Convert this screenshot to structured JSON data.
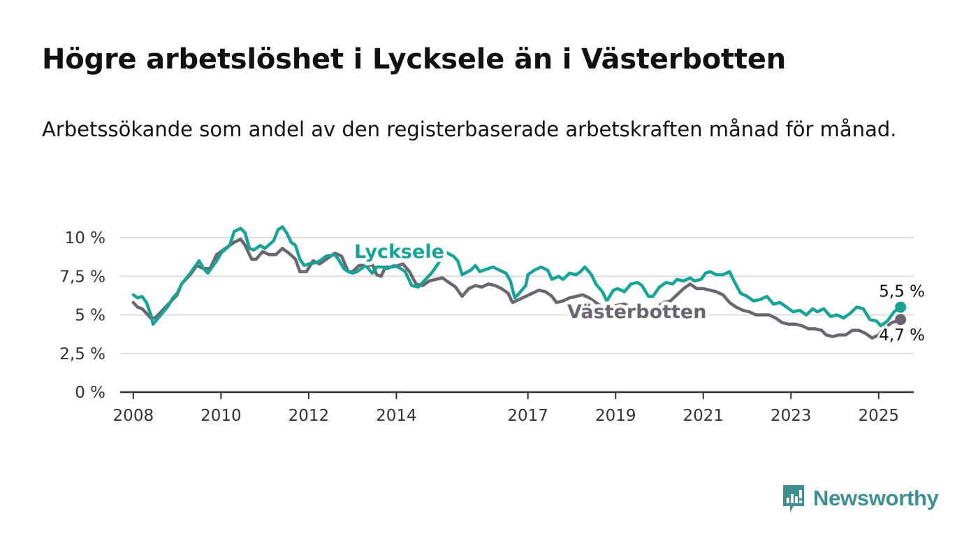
{
  "header": {
    "title": "Högre arbetslöshet i Lycksele än i Västerbotten",
    "subtitle": "Arbetssökande som andel av den registerbaserade arbetskraften månad för månad."
  },
  "branding": {
    "name": "Newsworthy",
    "icon": "newsworthy-logo-icon",
    "color": "#3d8f93"
  },
  "chart_data": {
    "type": "line",
    "title": "Högre arbetslöshet i Lycksele än i Västerbotten",
    "subtitle": "Arbetssökande som andel av den registerbaserade arbetskraften månad för månad.",
    "xlabel": "",
    "ylabel": "",
    "xlim": [
      2007.7,
      2025.8
    ],
    "ylim": [
      0,
      10.5
    ],
    "x_ticks": [
      2008,
      2010,
      2012,
      2014,
      2017,
      2019,
      2021,
      2023,
      2025
    ],
    "y_ticks": [
      0,
      2.5,
      5,
      7.5,
      10
    ],
    "y_tick_labels": [
      "0 %",
      "2,5 %",
      "5 %",
      "7,5 %",
      "10 %"
    ],
    "grid": true,
    "legend": "inline labels",
    "series": [
      {
        "name": "Lycksele",
        "color": "#17a398",
        "end_label": "5,5 %",
        "points": [
          [
            2008.0,
            6.3
          ],
          [
            2008.1,
            6.1
          ],
          [
            2008.2,
            6.2
          ],
          [
            2008.3,
            5.8
          ],
          [
            2008.4,
            5.0
          ],
          [
            2008.45,
            4.4
          ],
          [
            2008.6,
            4.9
          ],
          [
            2008.8,
            5.6
          ],
          [
            2008.9,
            6.1
          ],
          [
            2009.0,
            6.4
          ],
          [
            2009.1,
            7.0
          ],
          [
            2009.3,
            7.7
          ],
          [
            2009.5,
            8.5
          ],
          [
            2009.6,
            8.0
          ],
          [
            2009.7,
            7.7
          ],
          [
            2009.8,
            8.1
          ],
          [
            2009.9,
            8.5
          ],
          [
            2010.0,
            9.0
          ],
          [
            2010.2,
            9.5
          ],
          [
            2010.3,
            10.4
          ],
          [
            2010.45,
            10.6
          ],
          [
            2010.55,
            10.3
          ],
          [
            2010.65,
            9.3
          ],
          [
            2010.75,
            9.2
          ],
          [
            2010.9,
            9.5
          ],
          [
            2011.0,
            9.3
          ],
          [
            2011.2,
            9.8
          ],
          [
            2011.3,
            10.5
          ],
          [
            2011.4,
            10.7
          ],
          [
            2011.5,
            10.3
          ],
          [
            2011.6,
            9.7
          ],
          [
            2011.7,
            9.5
          ],
          [
            2011.8,
            8.6
          ],
          [
            2011.9,
            8.2
          ],
          [
            2012.0,
            8.3
          ],
          [
            2012.2,
            8.4
          ],
          [
            2012.4,
            8.8
          ],
          [
            2012.6,
            8.9
          ],
          [
            2012.7,
            8.5
          ],
          [
            2012.8,
            8.0
          ],
          [
            2012.9,
            7.8
          ],
          [
            2013.0,
            7.7
          ],
          [
            2013.1,
            7.8
          ],
          [
            2013.3,
            8.2
          ],
          [
            2013.45,
            7.7
          ],
          [
            2013.55,
            8.1
          ],
          [
            2013.7,
            8.1
          ],
          [
            2013.8,
            8.0
          ],
          [
            2013.95,
            8.2
          ],
          [
            2014.1,
            8.0
          ],
          [
            2014.2,
            7.8
          ],
          [
            2014.35,
            6.9
          ],
          [
            2014.5,
            6.8
          ],
          [
            2014.6,
            7.1
          ],
          [
            2014.8,
            7.7
          ],
          [
            2014.95,
            8.3
          ],
          [
            2015.1,
            9.1
          ],
          [
            2015.3,
            8.8
          ],
          [
            2015.4,
            8.5
          ],
          [
            2015.5,
            7.6
          ],
          [
            2015.7,
            7.9
          ],
          [
            2015.8,
            8.2
          ],
          [
            2015.9,
            7.8
          ],
          [
            2016.0,
            7.9
          ],
          [
            2016.2,
            8.1
          ],
          [
            2016.35,
            7.9
          ],
          [
            2016.5,
            7.7
          ],
          [
            2016.6,
            7.2
          ],
          [
            2016.7,
            6.1
          ],
          [
            2016.8,
            6.4
          ],
          [
            2016.95,
            6.9
          ],
          [
            2017.0,
            7.6
          ],
          [
            2017.15,
            7.9
          ],
          [
            2017.3,
            8.1
          ],
          [
            2017.45,
            7.9
          ],
          [
            2017.55,
            7.3
          ],
          [
            2017.7,
            7.5
          ],
          [
            2017.8,
            7.3
          ],
          [
            2017.95,
            7.7
          ],
          [
            2018.1,
            7.6
          ],
          [
            2018.2,
            7.8
          ],
          [
            2018.3,
            8.1
          ],
          [
            2018.45,
            7.6
          ],
          [
            2018.55,
            7.0
          ],
          [
            2018.7,
            6.5
          ],
          [
            2018.8,
            5.9
          ],
          [
            2018.95,
            6.6
          ],
          [
            2019.05,
            6.7
          ],
          [
            2019.2,
            6.5
          ],
          [
            2019.35,
            7.0
          ],
          [
            2019.5,
            7.1
          ],
          [
            2019.6,
            6.9
          ],
          [
            2019.75,
            6.2
          ],
          [
            2019.85,
            6.2
          ],
          [
            2020.0,
            6.8
          ],
          [
            2020.15,
            7.1
          ],
          [
            2020.3,
            7.0
          ],
          [
            2020.4,
            7.3
          ],
          [
            2020.55,
            7.2
          ],
          [
            2020.7,
            7.4
          ],
          [
            2020.8,
            7.2
          ],
          [
            2020.95,
            7.3
          ],
          [
            2021.05,
            7.7
          ],
          [
            2021.15,
            7.8
          ],
          [
            2021.3,
            7.6
          ],
          [
            2021.45,
            7.6
          ],
          [
            2021.6,
            7.8
          ],
          [
            2021.7,
            7.2
          ],
          [
            2021.85,
            6.4
          ],
          [
            2022.0,
            6.2
          ],
          [
            2022.15,
            5.9
          ],
          [
            2022.3,
            6.0
          ],
          [
            2022.45,
            6.2
          ],
          [
            2022.6,
            5.7
          ],
          [
            2022.75,
            5.8
          ],
          [
            2022.9,
            5.5
          ],
          [
            2023.05,
            5.2
          ],
          [
            2023.2,
            5.3
          ],
          [
            2023.35,
            5.0
          ],
          [
            2023.5,
            5.4
          ],
          [
            2023.6,
            5.2
          ],
          [
            2023.75,
            5.4
          ],
          [
            2023.9,
            4.9
          ],
          [
            2024.05,
            5.0
          ],
          [
            2024.2,
            4.8
          ],
          [
            2024.35,
            5.1
          ],
          [
            2024.5,
            5.5
          ],
          [
            2024.65,
            5.4
          ],
          [
            2024.8,
            4.7
          ],
          [
            2024.95,
            4.6
          ],
          [
            2025.05,
            4.3
          ],
          [
            2025.2,
            4.6
          ],
          [
            2025.35,
            5.2
          ],
          [
            2025.5,
            5.5
          ]
        ]
      },
      {
        "name": "Västerbotten",
        "color": "#6b6570",
        "end_label": "4,7 %",
        "points": [
          [
            2008.0,
            5.8
          ],
          [
            2008.1,
            5.5
          ],
          [
            2008.2,
            5.4
          ],
          [
            2008.3,
            5.1
          ],
          [
            2008.4,
            4.8
          ],
          [
            2008.5,
            4.8
          ],
          [
            2008.7,
            5.4
          ],
          [
            2008.9,
            6.0
          ],
          [
            2009.0,
            6.3
          ],
          [
            2009.1,
            7.0
          ],
          [
            2009.3,
            7.6
          ],
          [
            2009.45,
            8.2
          ],
          [
            2009.6,
            8.0
          ],
          [
            2009.75,
            8.0
          ],
          [
            2009.9,
            8.9
          ],
          [
            2010.1,
            9.3
          ],
          [
            2010.3,
            9.7
          ],
          [
            2010.45,
            9.9
          ],
          [
            2010.55,
            9.5
          ],
          [
            2010.7,
            8.6
          ],
          [
            2010.8,
            8.6
          ],
          [
            2010.95,
            9.1
          ],
          [
            2011.1,
            8.9
          ],
          [
            2011.25,
            8.9
          ],
          [
            2011.4,
            9.3
          ],
          [
            2011.55,
            9.0
          ],
          [
            2011.7,
            8.6
          ],
          [
            2011.8,
            7.8
          ],
          [
            2011.95,
            7.8
          ],
          [
            2012.1,
            8.5
          ],
          [
            2012.25,
            8.3
          ],
          [
            2012.45,
            8.7
          ],
          [
            2012.6,
            9.0
          ],
          [
            2012.75,
            8.8
          ],
          [
            2012.9,
            7.8
          ],
          [
            2013.0,
            7.8
          ],
          [
            2013.15,
            8.2
          ],
          [
            2013.3,
            8.2
          ],
          [
            2013.4,
            8.2
          ],
          [
            2013.45,
            8.3
          ],
          [
            2013.55,
            7.6
          ],
          [
            2013.65,
            7.5
          ],
          [
            2013.75,
            8.1
          ],
          [
            2013.9,
            8.1
          ],
          [
            2014.05,
            8.2
          ],
          [
            2014.15,
            8.3
          ],
          [
            2014.3,
            7.8
          ],
          [
            2014.45,
            7.0
          ],
          [
            2014.6,
            6.9
          ],
          [
            2014.75,
            7.2
          ],
          [
            2014.9,
            7.3
          ],
          [
            2015.05,
            7.4
          ],
          [
            2015.2,
            7.1
          ],
          [
            2015.35,
            6.8
          ],
          [
            2015.5,
            6.2
          ],
          [
            2015.65,
            6.7
          ],
          [
            2015.8,
            6.9
          ],
          [
            2015.95,
            6.8
          ],
          [
            2016.1,
            7.0
          ],
          [
            2016.25,
            6.9
          ],
          [
            2016.4,
            6.7
          ],
          [
            2016.55,
            6.4
          ],
          [
            2016.65,
            5.8
          ],
          [
            2016.8,
            6.0
          ],
          [
            2016.95,
            6.2
          ],
          [
            2017.1,
            6.4
          ],
          [
            2017.25,
            6.6
          ],
          [
            2017.4,
            6.5
          ],
          [
            2017.55,
            6.2
          ],
          [
            2017.65,
            5.8
          ],
          [
            2017.8,
            5.9
          ],
          [
            2017.95,
            6.1
          ],
          [
            2018.1,
            6.2
          ],
          [
            2018.25,
            6.3
          ],
          [
            2018.4,
            6.1
          ],
          [
            2018.55,
            5.8
          ],
          [
            2018.7,
            5.5
          ],
          [
            2018.85,
            5.4
          ],
          [
            2019.0,
            5.6
          ],
          [
            2019.2,
            5.7
          ],
          [
            2019.35,
            5.5
          ],
          [
            2019.5,
            5.6
          ],
          [
            2019.65,
            5.5
          ],
          [
            2019.8,
            5.3
          ],
          [
            2019.95,
            5.5
          ],
          [
            2020.1,
            5.8
          ],
          [
            2020.25,
            5.9
          ],
          [
            2020.4,
            6.3
          ],
          [
            2020.55,
            6.7
          ],
          [
            2020.7,
            7.0
          ],
          [
            2020.85,
            6.7
          ],
          [
            2021.0,
            6.7
          ],
          [
            2021.15,
            6.6
          ],
          [
            2021.3,
            6.5
          ],
          [
            2021.45,
            6.3
          ],
          [
            2021.6,
            5.8
          ],
          [
            2021.75,
            5.5
          ],
          [
            2021.9,
            5.3
          ],
          [
            2022.05,
            5.2
          ],
          [
            2022.2,
            5.0
          ],
          [
            2022.35,
            5.0
          ],
          [
            2022.5,
            5.0
          ],
          [
            2022.65,
            4.8
          ],
          [
            2022.8,
            4.5
          ],
          [
            2022.95,
            4.4
          ],
          [
            2023.1,
            4.4
          ],
          [
            2023.25,
            4.3
          ],
          [
            2023.4,
            4.1
          ],
          [
            2023.55,
            4.1
          ],
          [
            2023.7,
            4.0
          ],
          [
            2023.8,
            3.7
          ],
          [
            2023.95,
            3.6
          ],
          [
            2024.1,
            3.7
          ],
          [
            2024.25,
            3.7
          ],
          [
            2024.4,
            4.0
          ],
          [
            2024.55,
            4.0
          ],
          [
            2024.7,
            3.8
          ],
          [
            2024.85,
            3.5
          ],
          [
            2025.0,
            3.7
          ],
          [
            2025.15,
            4.2
          ],
          [
            2025.3,
            4.5
          ],
          [
            2025.5,
            4.7
          ]
        ]
      }
    ]
  }
}
